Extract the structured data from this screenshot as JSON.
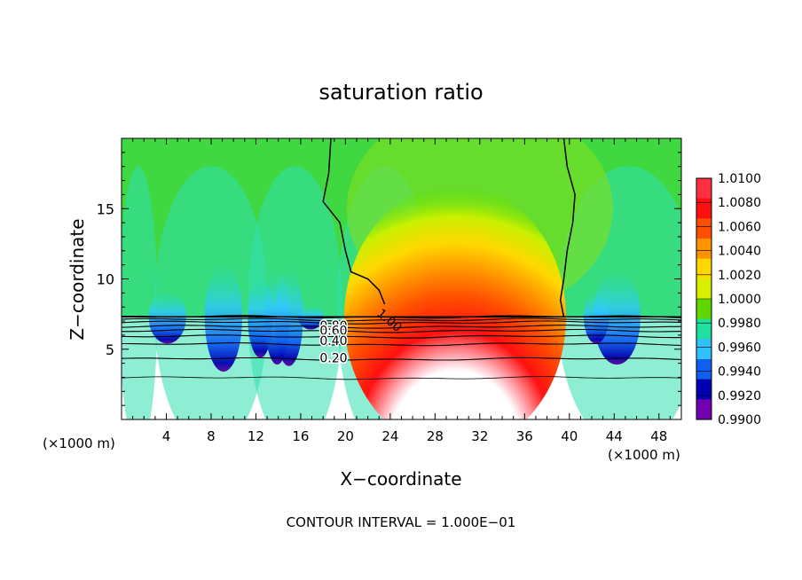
{
  "chart_data": {
    "type": "heatmap",
    "title": "saturation ratio",
    "xlabel": "X−coordinate",
    "ylabel": "Z−coordinate",
    "x_unit_left": "(×1000 m)",
    "x_unit_right": "(×1000 m)",
    "xlim": [
      0,
      50
    ],
    "ylim": [
      0,
      20
    ],
    "x_ticks": [
      4,
      8,
      12,
      16,
      20,
      24,
      28,
      32,
      36,
      40,
      44,
      48
    ],
    "y_ticks": [
      5,
      10,
      15
    ],
    "footer": "CONTOUR INTERVAL = 1.000E−01",
    "colorbar": {
      "labels": [
        "1.0100",
        "1.0080",
        "1.0060",
        "1.0040",
        "1.0020",
        "1.0000",
        "0.9980",
        "0.9960",
        "0.9940",
        "0.9920",
        "0.9900"
      ],
      "colors": [
        "#ff3040",
        "#ff1010",
        "#ff5000",
        "#ff9400",
        "#ffd800",
        "#d8f000",
        "#60d800",
        "#20e0a0",
        "#30c0ff",
        "#1060f0",
        "#0000b0",
        "#7000b0"
      ]
    },
    "contour_labels": [
      {
        "text": "1.00",
        "x": 23,
        "z": 7.7
      },
      {
        "text": "0.80",
        "x": 17.7,
        "z": 6.7
      },
      {
        "text": "0.60",
        "x": 17.7,
        "z": 6.35
      },
      {
        "text": "0.40",
        "x": 17.7,
        "z": 5.6
      },
      {
        "text": "0.20",
        "x": 17.7,
        "z": 4.4
      }
    ],
    "contour_levels": [
      0.2,
      0.4,
      0.6,
      0.8,
      1.0
    ],
    "cloud_base_z": 7.3,
    "cloud_core": {
      "x": 31,
      "z": 12
    }
  }
}
